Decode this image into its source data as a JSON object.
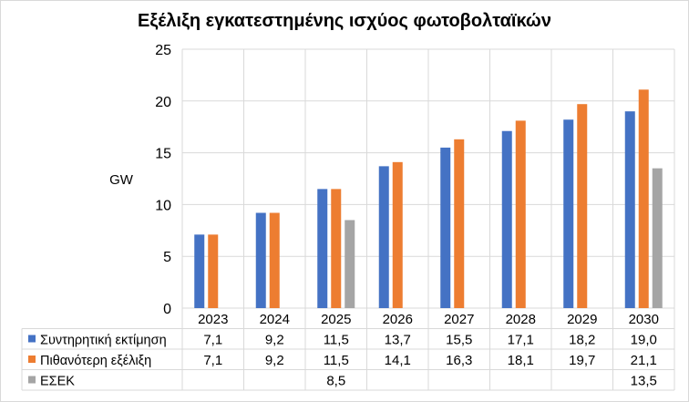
{
  "chart_data": {
    "type": "bar",
    "title": "Εξέλιξη εγκατεστημένης ισχύος φωτοβολταϊκών",
    "ylabel": "GW",
    "xlabel": "",
    "ylim": [
      0,
      25
    ],
    "yticks": [
      0,
      5,
      10,
      15,
      20,
      25
    ],
    "categories": [
      "2023",
      "2024",
      "2025",
      "2026",
      "2027",
      "2028",
      "2029",
      "2030"
    ],
    "grid": true,
    "data_table": true,
    "series": [
      {
        "name": "Συντηρητική εκτίμηση",
        "color": "#4472c4",
        "values": [
          7.1,
          9.2,
          11.5,
          13.7,
          15.5,
          17.1,
          18.2,
          19.0
        ],
        "labels": [
          "7,1",
          "9,2",
          "11,5",
          "13,7",
          "15,5",
          "17,1",
          "18,2",
          "19,0"
        ]
      },
      {
        "name": "Πιθανότερη εξέλιξη",
        "color": "#ed7d31",
        "values": [
          7.1,
          9.2,
          11.5,
          14.1,
          16.3,
          18.1,
          19.7,
          21.1
        ],
        "labels": [
          "7,1",
          "9,2",
          "11,5",
          "14,1",
          "16,3",
          "18,1",
          "19,7",
          "21,1"
        ]
      },
      {
        "name": "ΕΣΕΚ",
        "color": "#a5a5a5",
        "values": [
          null,
          null,
          8.5,
          null,
          null,
          null,
          null,
          13.5
        ],
        "labels": [
          "",
          "",
          "8,5",
          "",
          "",
          "",
          "",
          "13,5"
        ]
      }
    ]
  }
}
